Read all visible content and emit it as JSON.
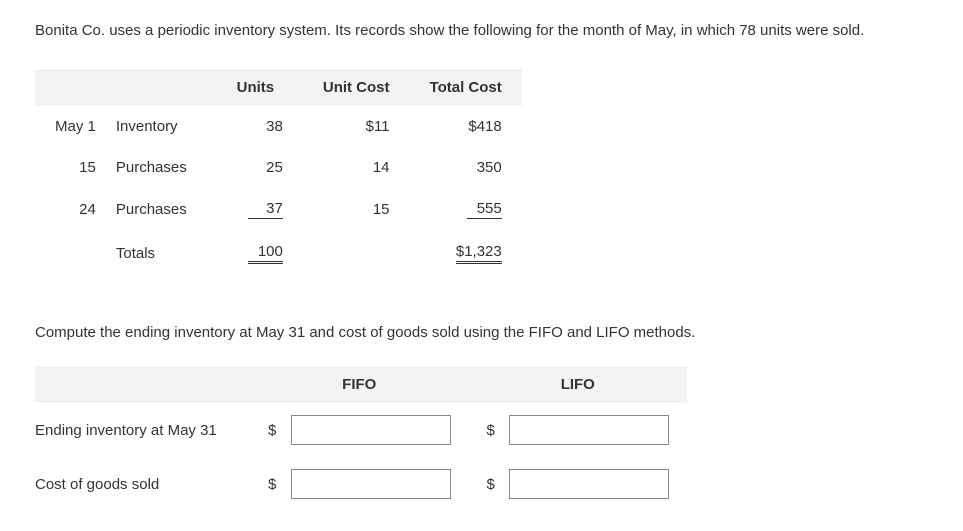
{
  "intro": "Bonita Co. uses a periodic inventory system. Its records show the following for the month of May, in which 78 units were sold.",
  "inventory_table": {
    "columns": [
      "Units",
      "Unit Cost",
      "Total Cost"
    ],
    "rows": [
      {
        "date": "May 1",
        "label": "Inventory",
        "units": "38",
        "unit_cost": "$11",
        "total_cost": "$418",
        "style": "normal"
      },
      {
        "date": "15",
        "label": "Purchases",
        "units": "25",
        "unit_cost": "14",
        "total_cost": "350",
        "style": "normal"
      },
      {
        "date": "24",
        "label": "Purchases",
        "units": "37",
        "unit_cost": "15",
        "total_cost": "555",
        "style": "single"
      },
      {
        "date": "",
        "label": "Totals",
        "units": "100",
        "unit_cost": "",
        "total_cost": "$1,323",
        "style": "double"
      }
    ]
  },
  "compute_text": "Compute the ending inventory at May 31 and cost of goods sold using the FIFO and LIFO methods.",
  "answer_table": {
    "col_fifo": "FIFO",
    "col_lifo": "LIFO",
    "rows": [
      {
        "label": "Ending inventory at May 31",
        "fifo": "",
        "lifo": ""
      },
      {
        "label": "Cost of goods sold",
        "fifo": "",
        "lifo": ""
      }
    ],
    "currency": "$"
  },
  "colors": {
    "header_bg": "#f3f3f3",
    "text": "#333333",
    "input_border": "#888888",
    "background": "#ffffff"
  }
}
